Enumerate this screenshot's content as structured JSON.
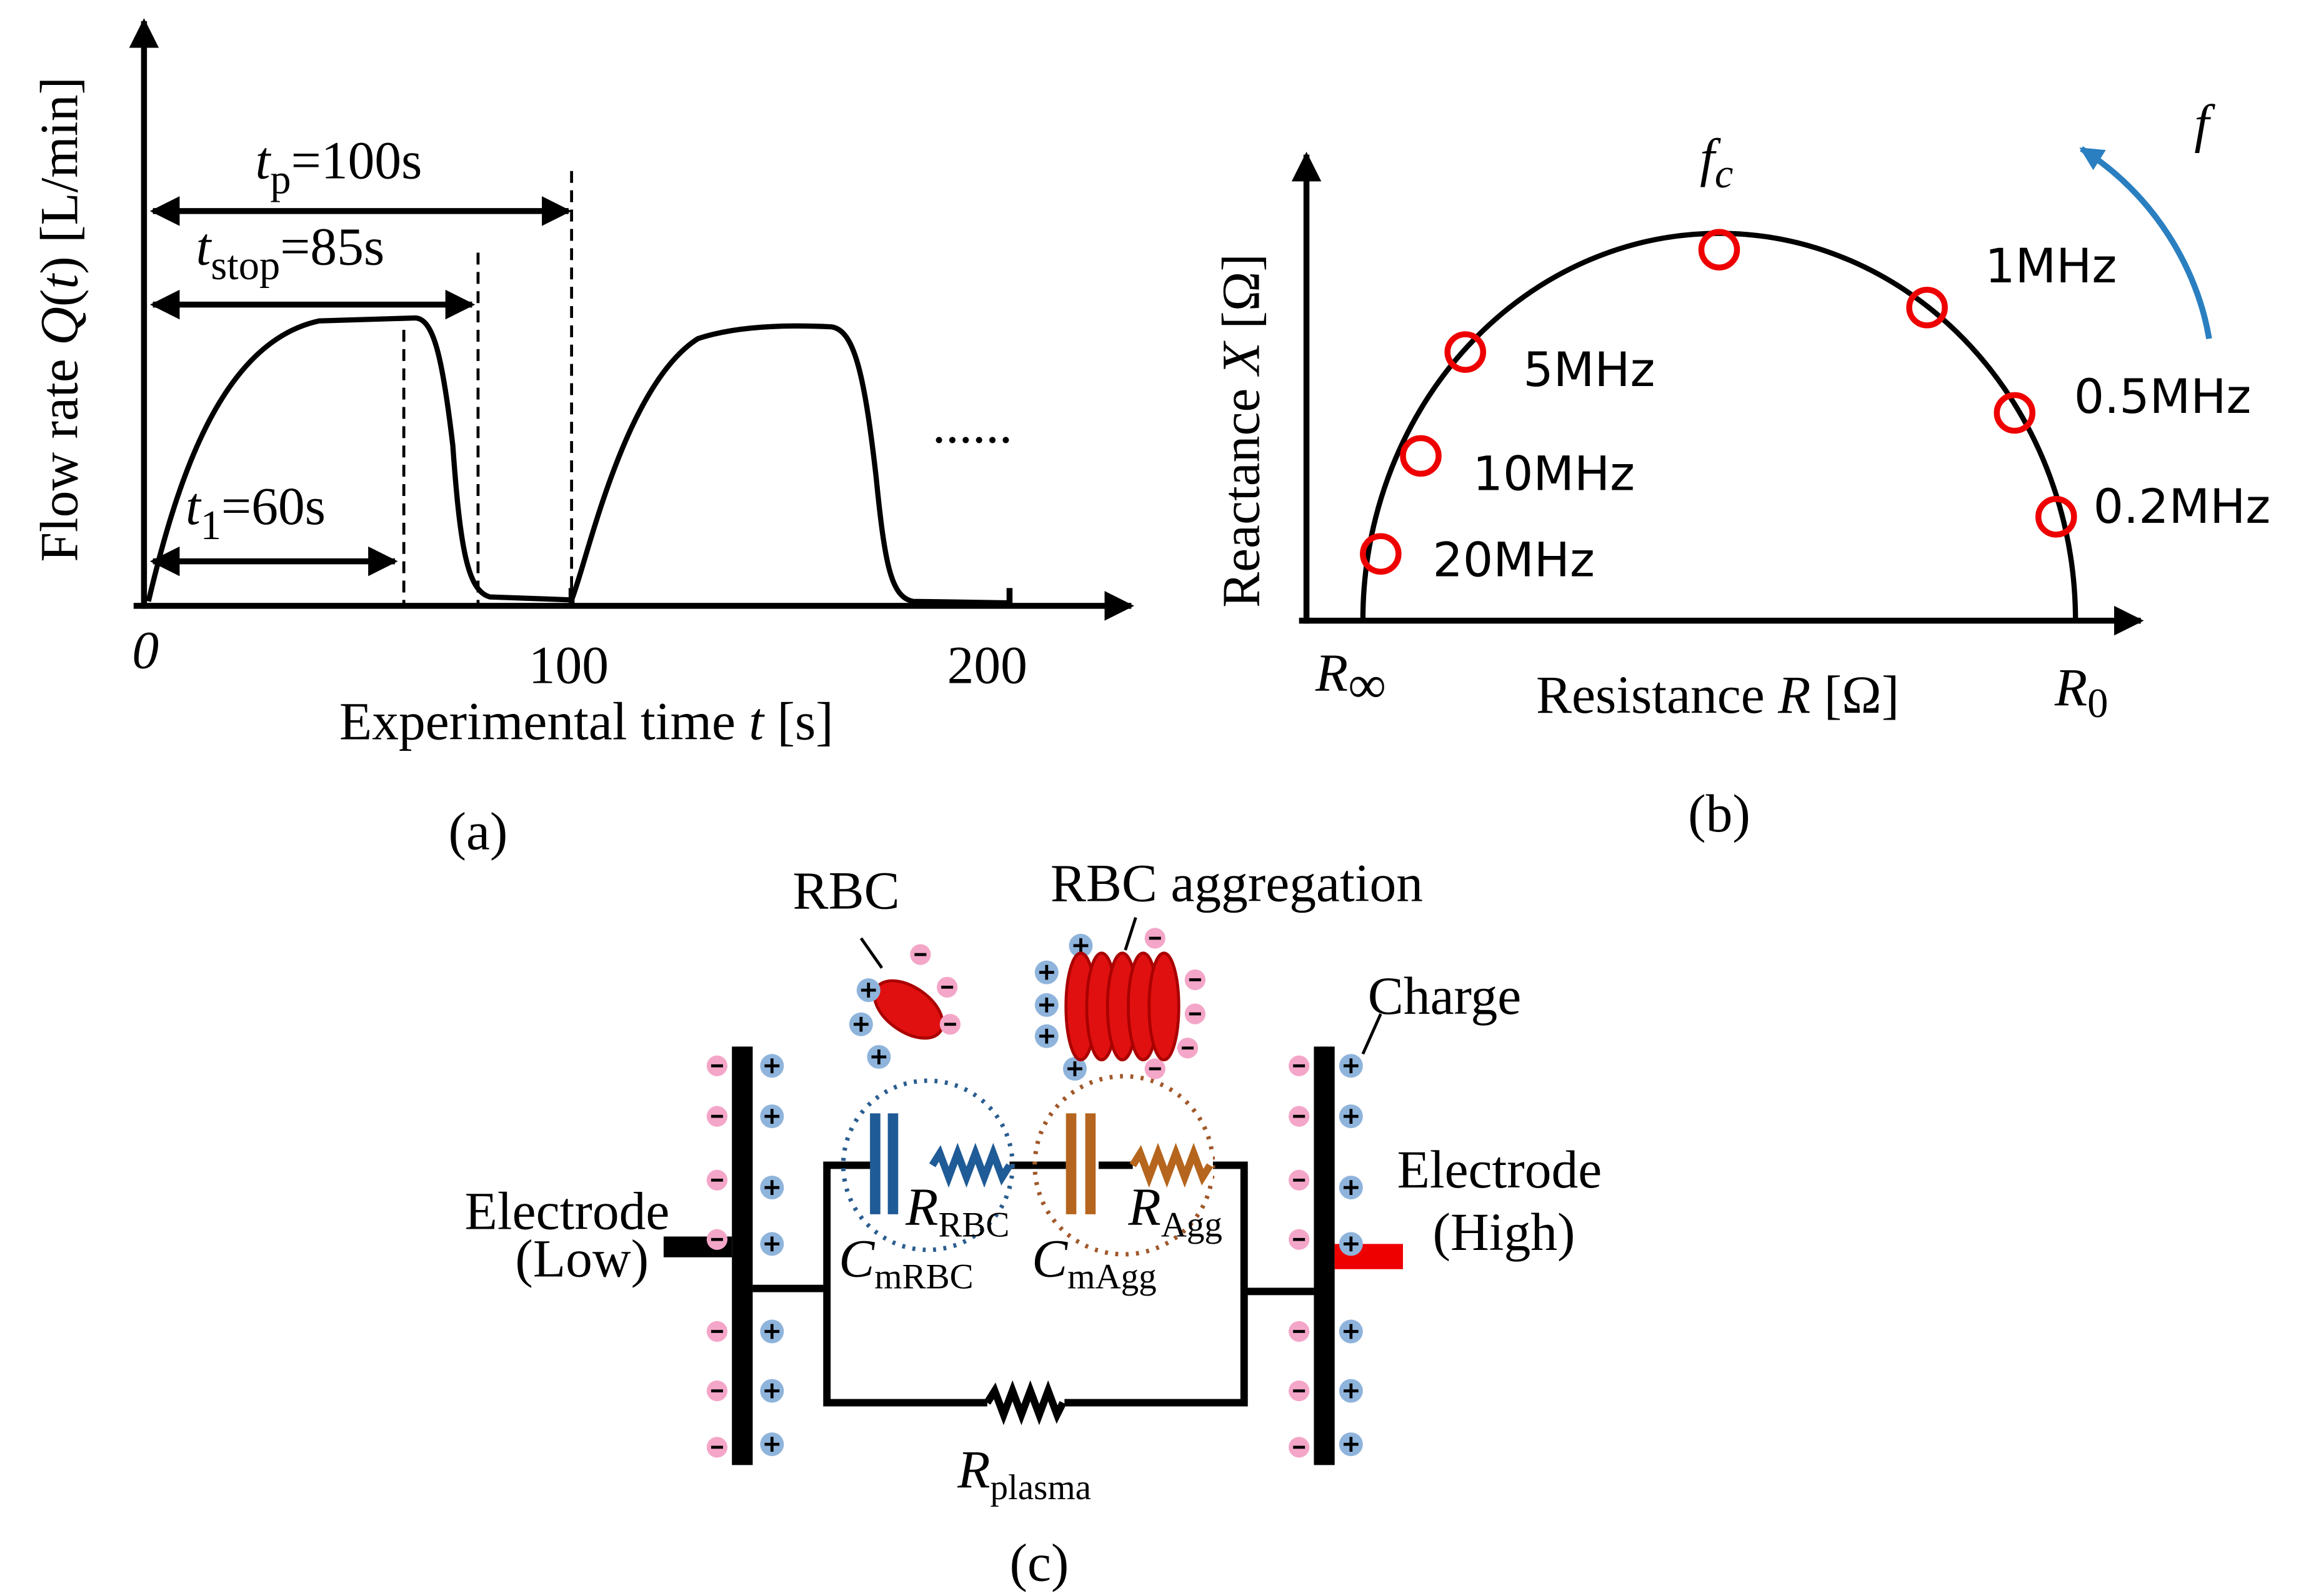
{
  "panel_a": {
    "y_label": [
      "Flow rate ",
      "Q",
      "(",
      "t",
      ") [L/min]"
    ],
    "x_label": [
      "Experimental time ",
      "t",
      " [s]"
    ],
    "x_ticks": [
      "0",
      "100",
      "200"
    ],
    "t_p": [
      "t",
      "p",
      "=100s"
    ],
    "t_stop": [
      "t",
      "stop",
      "=85s"
    ],
    "t_1": [
      "t",
      "1",
      "=60s"
    ],
    "ellipsis": "......",
    "caption": "(a)"
  },
  "panel_b": {
    "y_label": [
      "Reactance ",
      "X",
      " [Ω]"
    ],
    "x_label": [
      "Resistance ",
      "R",
      " [Ω]"
    ],
    "r_inf": [
      "R",
      "∞"
    ],
    "r_0": [
      "R",
      "0"
    ],
    "f_c": [
      "f",
      "c"
    ],
    "f": "f",
    "frequencies": [
      "20MHz",
      "10MHz",
      "5MHz",
      "1MHz",
      "0.5MHz",
      "0.2MHz"
    ],
    "caption": "(b)"
  },
  "panel_c": {
    "rbc": "RBC",
    "rbc_aggregation": "RBC aggregation",
    "charge": "Charge",
    "electrode_low": [
      "Electrode",
      "(Low)"
    ],
    "electrode_high": [
      "Electrode",
      "(High)"
    ],
    "c_mrbc": [
      "C",
      "mRBC"
    ],
    "r_rbc": [
      "R",
      "RBC"
    ],
    "c_magg": [
      "C",
      "mAgg"
    ],
    "r_agg": [
      "R",
      "Agg"
    ],
    "r_plasma": [
      "R",
      "plasma"
    ],
    "caption": "(c)"
  }
}
